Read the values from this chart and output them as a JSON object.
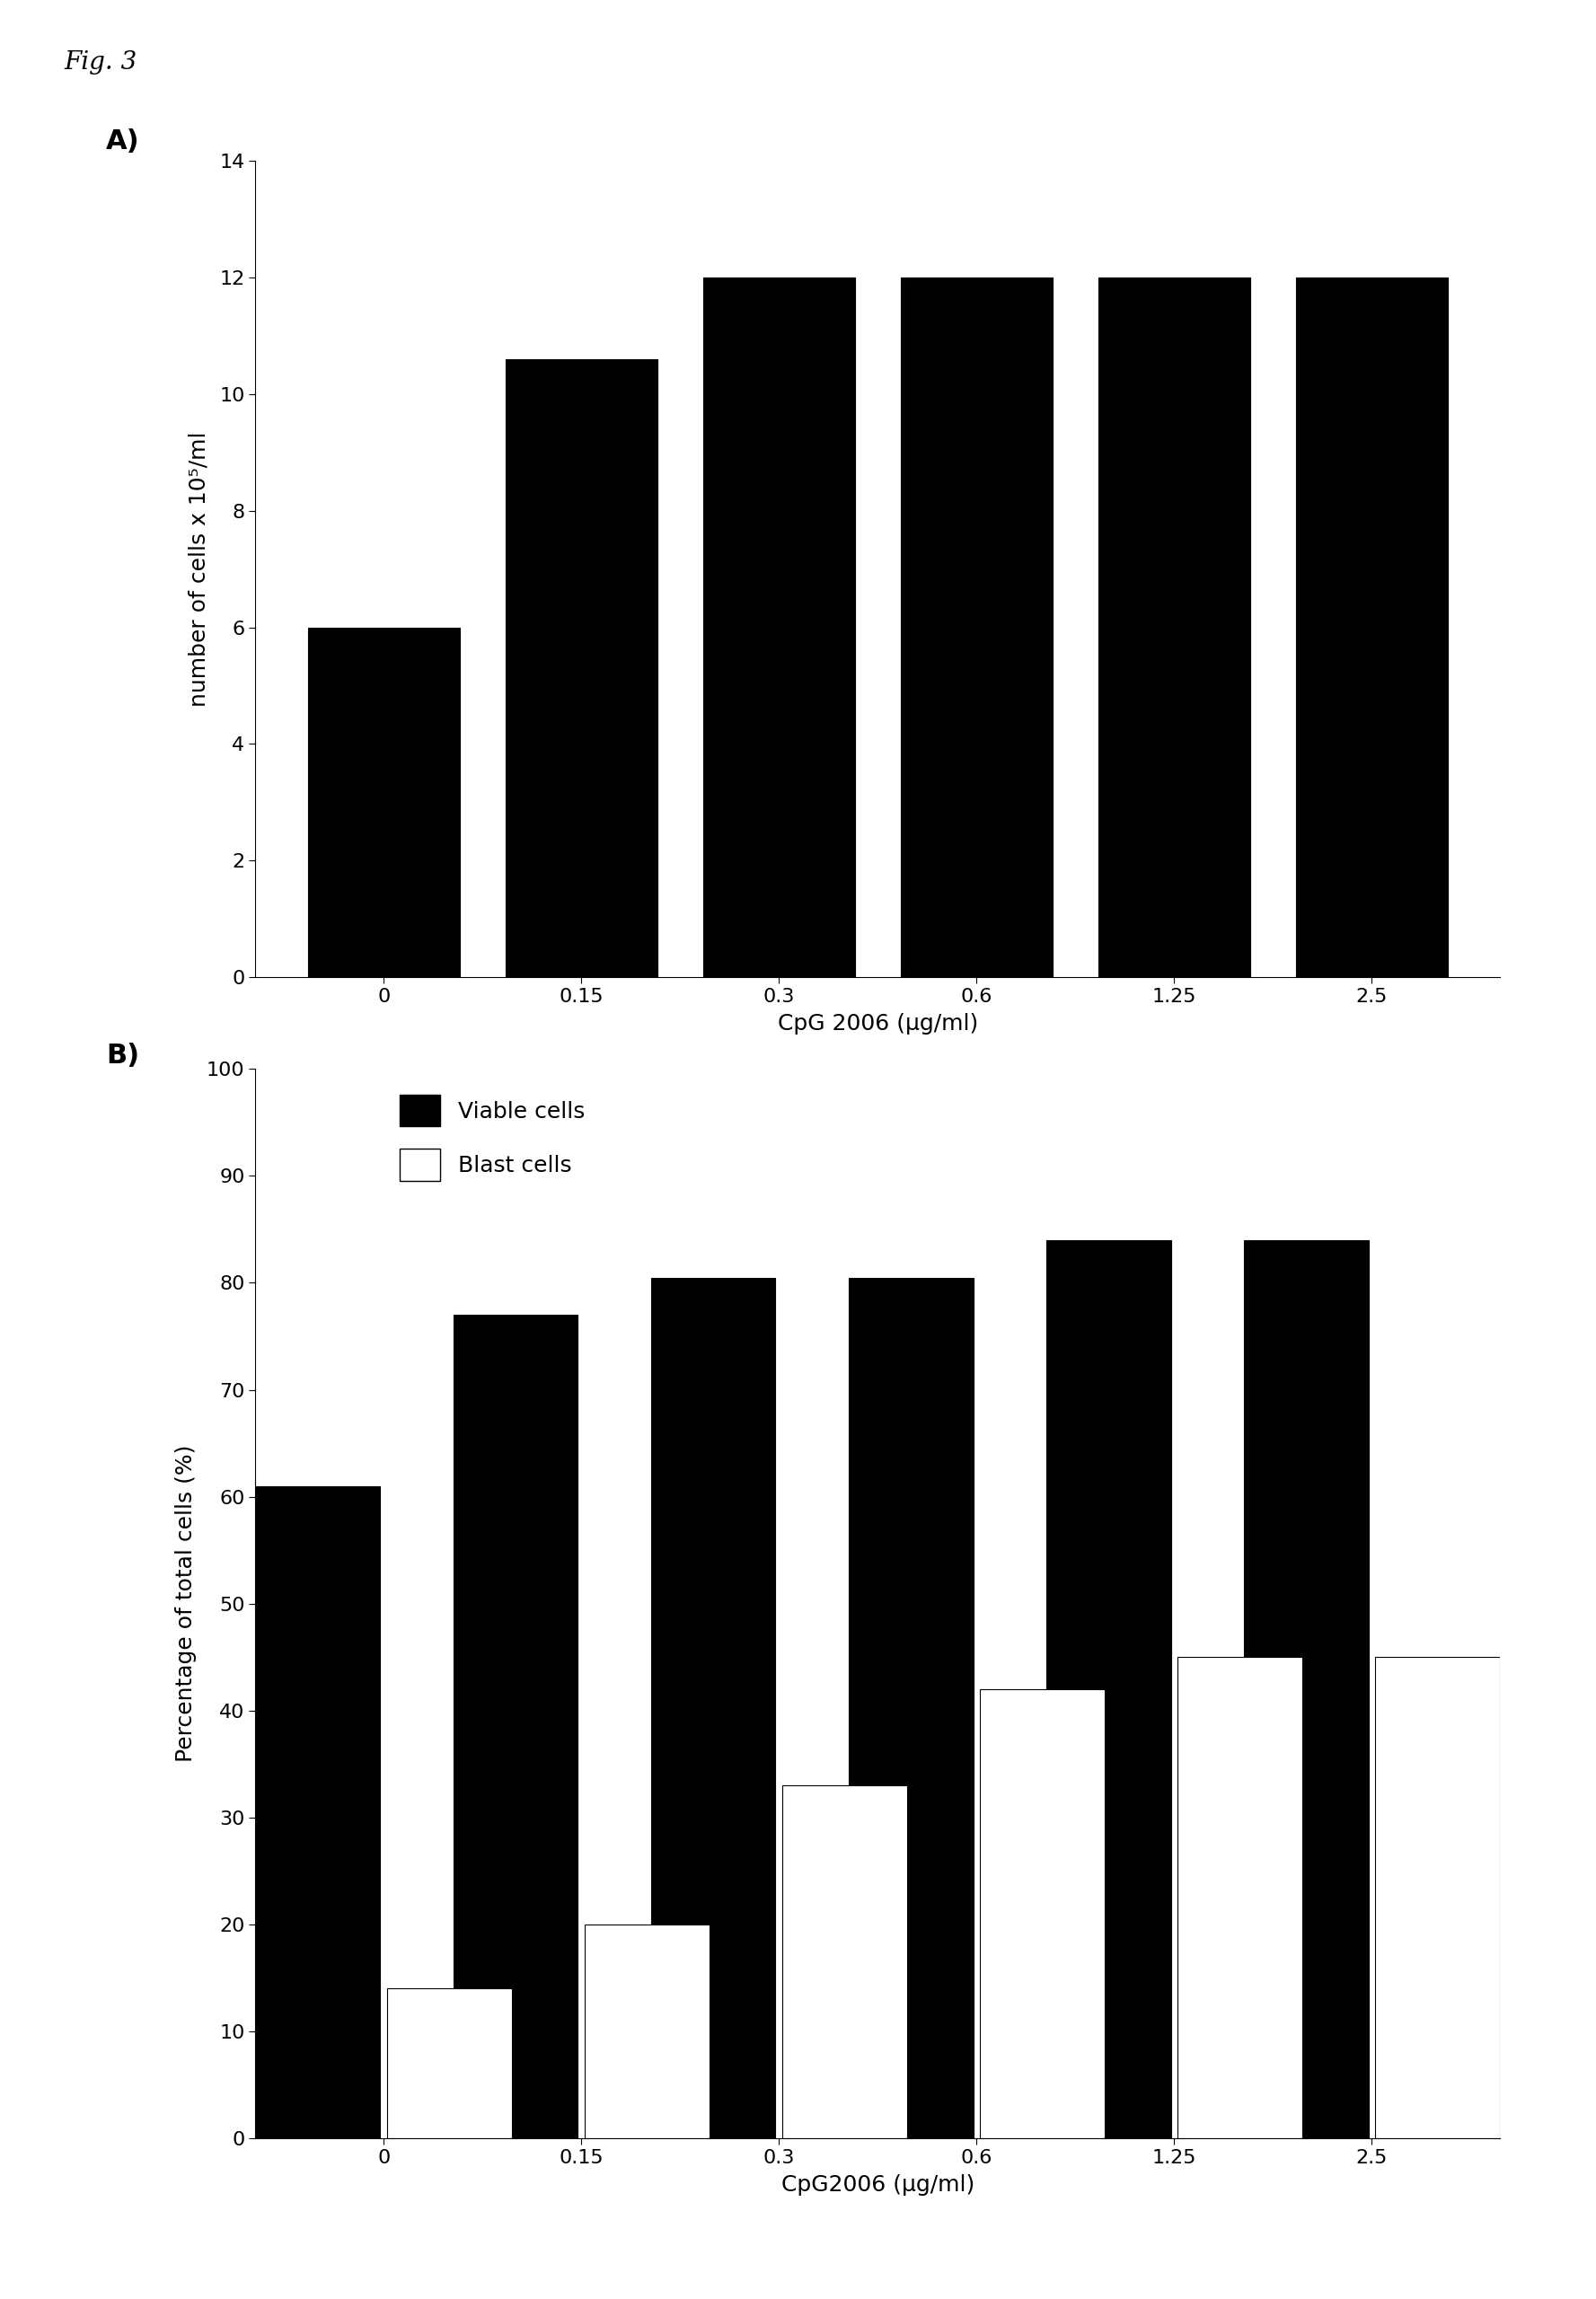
{
  "fig_label": "Fig. 3",
  "panel_A": {
    "categories": [
      "0",
      "0.15",
      "0.3",
      "0.6",
      "1.25",
      "2.5"
    ],
    "values": [
      6.0,
      10.6,
      12.0,
      12.0,
      12.0,
      12.0
    ],
    "ylabel": "number of cells x 10⁵/ml",
    "xlabel": "CpG 2006 (μg/ml)",
    "ylim": [
      0,
      14
    ],
    "yticks": [
      0,
      2,
      4,
      6,
      8,
      10,
      12,
      14
    ],
    "panel_label": "A)"
  },
  "panel_B": {
    "categories": [
      "0",
      "0.15",
      "0.3",
      "0.6",
      "1.25",
      "2.5"
    ],
    "viable_values": [
      61,
      77,
      80.5,
      80.5,
      84,
      84
    ],
    "blast_values": [
      14,
      20,
      33,
      42,
      45,
      45
    ],
    "ylabel": "Percentage of total cells (%)",
    "xlabel": "CpG2006 (μg/ml)",
    "ylim": [
      0,
      100
    ],
    "yticks": [
      0,
      10,
      20,
      30,
      40,
      50,
      60,
      70,
      80,
      90,
      100
    ],
    "panel_label": "B)",
    "legend_viable": "Viable cells",
    "legend_blast": "Blast cells"
  },
  "bar_color_black": "#000000",
  "bar_color_white": "#ffffff",
  "background_color": "#ffffff",
  "bar_width": 0.35,
  "font_size_labels": 18,
  "font_size_ticks": 16,
  "font_size_panel": 22,
  "font_size_fig": 20,
  "font_size_legend": 18
}
